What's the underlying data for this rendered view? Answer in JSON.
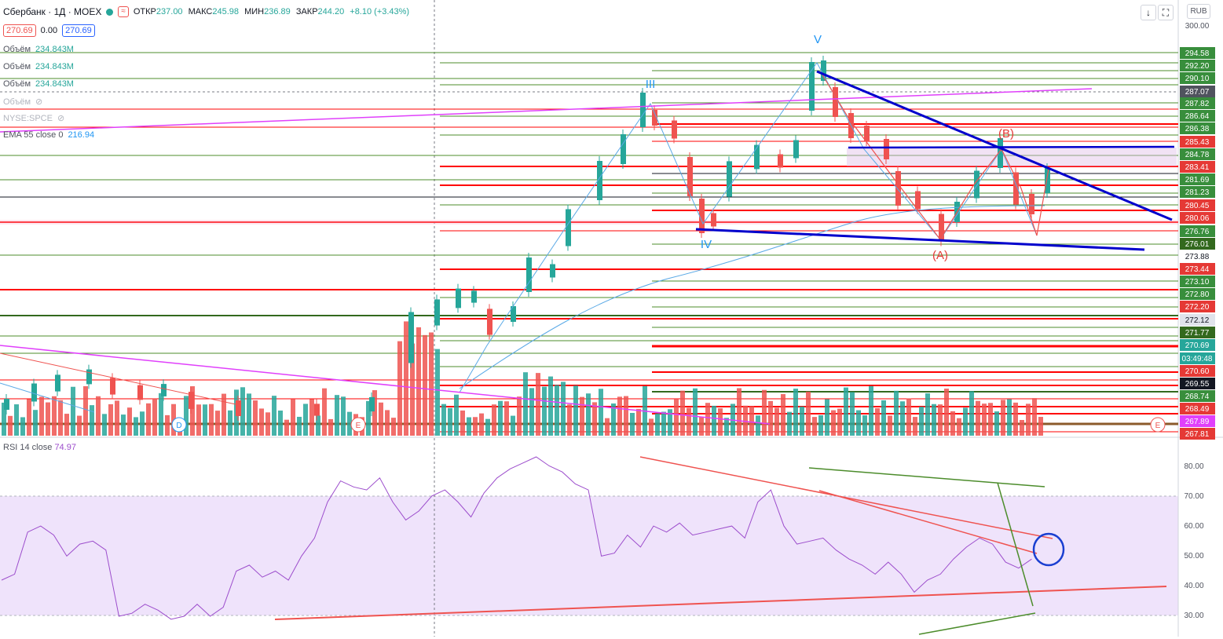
{
  "header": {
    "symbol": "Сбербанк · 1Д · MOEX",
    "ohlc": [
      {
        "label": "ОТКР",
        "value": "237.00"
      },
      {
        "label": "МАКС",
        "value": "245.98"
      },
      {
        "label": "МИН",
        "value": "236.89"
      },
      {
        "label": "ЗАКР",
        "value": "244.20"
      }
    ],
    "change": "+8.10 (+3.43%)",
    "bid": "270.69",
    "spread": "0.00",
    "ask": "270.69",
    "currency": "RUB"
  },
  "indicators": {
    "volume_label": "Объём",
    "volume_value": "234.843M",
    "spce": "NYSE:SPCE",
    "ema_label": "EMA 55 close 0",
    "ema_value": "216.94"
  },
  "rsi": {
    "label": "RSI 14 close",
    "value": "74.97"
  },
  "price_axis": {
    "labels": [
      "300.00",
      "294.58",
      "292.20",
      "290.10",
      "287.07",
      "287.82",
      "286.64",
      "286.38",
      "285.43",
      "284.78",
      "283.41",
      "281.69",
      "281.23",
      "280.45",
      "280.06",
      "276.76",
      "276.01",
      "273.88",
      "273.44",
      "273.10",
      "272.80",
      "272.20",
      "272.12",
      "271.77",
      "270.69",
      "03:49:48",
      "270.60",
      "269.55",
      "268.74",
      "268.49",
      "267.89",
      "267.81"
    ],
    "badges": [
      {
        "text": "294.58",
        "bg": "#388e3c",
        "fg": "#ffffff"
      },
      {
        "text": "292.20",
        "bg": "#388e3c",
        "fg": "#ffffff"
      },
      {
        "text": "290.10",
        "bg": "#388e3c",
        "fg": "#ffffff"
      },
      {
        "text": "287.07",
        "bg": "#50535e",
        "fg": "#ffffff"
      },
      {
        "text": "287.82",
        "bg": "#388e3c",
        "fg": "#ffffff"
      },
      {
        "text": "286.64",
        "bg": "#388e3c",
        "fg": "#ffffff"
      },
      {
        "text": "286.38",
        "bg": "#388e3c",
        "fg": "#ffffff"
      },
      {
        "text": "285.43",
        "bg": "#e53935",
        "fg": "#ffffff"
      },
      {
        "text": "284.78",
        "bg": "#388e3c",
        "fg": "#ffffff"
      },
      {
        "text": "283.41",
        "bg": "#e53935",
        "fg": "#ffffff"
      },
      {
        "text": "281.69",
        "bg": "#388e3c",
        "fg": "#ffffff"
      },
      {
        "text": "281.23",
        "bg": "#388e3c",
        "fg": "#ffffff"
      },
      {
        "text": "280.45",
        "bg": "#e53935",
        "fg": "#ffffff"
      },
      {
        "text": "280.06",
        "bg": "#e53935",
        "fg": "#ffffff"
      },
      {
        "text": "276.76",
        "bg": "#388e3c",
        "fg": "#ffffff"
      },
      {
        "text": "276.01",
        "bg": "#33691e",
        "fg": "#ffffff"
      },
      {
        "text": "273.88",
        "bg": "#ffffff",
        "fg": "#131722"
      },
      {
        "text": "273.44",
        "bg": "#e53935",
        "fg": "#ffffff"
      },
      {
        "text": "273.10",
        "bg": "#388e3c",
        "fg": "#ffffff"
      },
      {
        "text": "272.80",
        "bg": "#388e3c",
        "fg": "#ffffff"
      },
      {
        "text": "272.20",
        "bg": "#e53935",
        "fg": "#ffffff"
      },
      {
        "text": "272.12",
        "bg": "#e0e3eb",
        "fg": "#131722"
      },
      {
        "text": "271.77",
        "bg": "#33691e",
        "fg": "#ffffff"
      },
      {
        "text": "270.69",
        "bg": "#26a69a",
        "fg": "#ffffff"
      },
      {
        "text": "03:49:48",
        "bg": "#26a69a",
        "fg": "#ffffff"
      },
      {
        "text": "270.60",
        "bg": "#e53935",
        "fg": "#ffffff"
      },
      {
        "text": "269.55",
        "bg": "#131722",
        "fg": "#ffffff"
      },
      {
        "text": "268.74",
        "bg": "#388e3c",
        "fg": "#ffffff"
      },
      {
        "text": "268.49",
        "bg": "#e53935",
        "fg": "#ffffff"
      },
      {
        "text": "267.89",
        "bg": "#e040fb",
        "fg": "#ffffff"
      },
      {
        "text": "267.81",
        "bg": "#e53935",
        "fg": "#ffffff"
      }
    ]
  },
  "rsi_axis": {
    "labels": [
      "80.00",
      "70.00",
      "60.00",
      "50.00",
      "40.00",
      "30.00"
    ]
  },
  "annotations": {
    "waves": [
      "III",
      "IV",
      "V"
    ],
    "corrective": [
      "(A)",
      "(B)"
    ],
    "events": [
      "D",
      "E",
      "E"
    ]
  },
  "colors": {
    "up": "#26a69a",
    "down": "#ef5350",
    "trend_blue": "#0000cc",
    "support_red": "#ff0000",
    "level_green": "#4c8c2b",
    "magenta": "#e040fb",
    "rsi_line": "#9c4dcc",
    "rsi_band": "#efe3fb"
  }
}
